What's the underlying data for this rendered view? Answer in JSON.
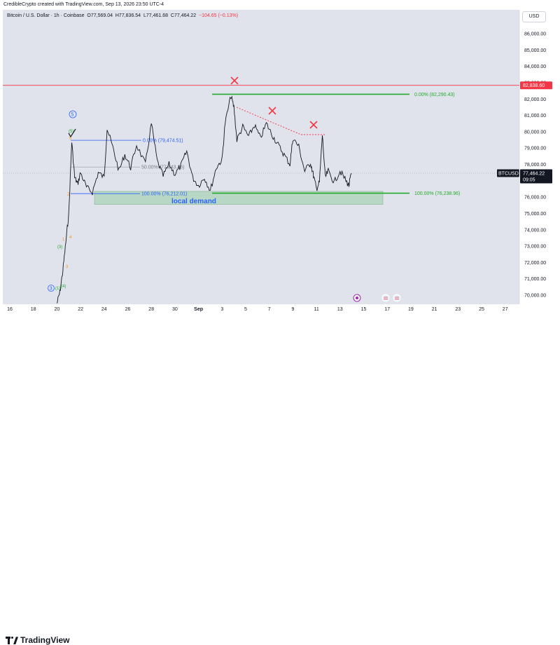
{
  "header": {
    "creator_text": "CredibleCrypto created with TradingView.com, Sep 13, 2026 23:50 UTC-4"
  },
  "legend": {
    "symbol": "Bitcoin / U.S. Dollar · 1h · Coinbase",
    "o": "O77,569.04",
    "h": "H77,836.54",
    "l": "L77,461.68",
    "c": "C77,464.22",
    "change": "−104.65 (−0.13%)"
  },
  "currency": "USD",
  "price_axis": {
    "ticks": [
      "86,000.00",
      "85,000.00",
      "84,000.00",
      "83,000.00",
      "82,000.00",
      "81,000.00",
      "80,000.00",
      "79,000.00",
      "78,000.00",
      "77,000.00",
      "76,000.00",
      "75,000.00",
      "74,000.00",
      "73,000.00",
      "72,000.00",
      "71,000.00",
      "70,000.00"
    ],
    "red_line_label": "82,838.60",
    "symbol_tag": "BTCUSD",
    "last_price": "77,464.22",
    "countdown": "09:05"
  },
  "time_axis": {
    "ticks": [
      "16",
      "18",
      "20",
      "22",
      "24",
      "26",
      "28",
      "30",
      "Sep",
      "3",
      "5",
      "7",
      "9",
      "11",
      "13",
      "15",
      "17",
      "19",
      "21",
      "23",
      "25",
      "27"
    ]
  },
  "annotations": {
    "fib_top_right": "0.00% (82,290.43)",
    "fib_bottom_right": "100.00% (76,238.96)",
    "fib_left_top": "0.00% (79,474.51)",
    "fib_left_mid": "50.00% (77,843.26)",
    "fib_left_bottom": "100.00% (76,212.01)",
    "local_demand": "local demand",
    "wave_5": "5",
    "wave_b": "(5)",
    "wave_3": "3",
    "wave_1": "(1)",
    "wave_4": "(4)",
    "wave_3b": "(3)",
    "orange_5": "5",
    "orange_4": "4",
    "orange_3": "3",
    "orange_2": "2",
    "orange_1": "1"
  },
  "chart_data": {
    "type": "line",
    "title": "",
    "y_unit": "USD",
    "ylim": [
      69500,
      86800
    ],
    "x": [
      "Aug 16",
      "Aug 18",
      "Aug 20",
      "Aug 22",
      "Aug 24",
      "Aug 26",
      "Aug 28",
      "Aug 30",
      "Sep 1",
      "Sep 3",
      "Sep 5",
      "Sep 7",
      "Sep 9",
      "Sep 11",
      "Sep 13"
    ],
    "red_horizontal": 82838.6,
    "green_top": 82290.43,
    "green_bottom": 76238.96,
    "demand_zone": [
      75550,
      76350
    ],
    "last": 77464.22,
    "points": [
      [
        "Aug 20 00:00",
        69500
      ],
      [
        "Aug 20 06:00",
        70200
      ],
      [
        "Aug 20 12:00",
        71500
      ],
      [
        "Aug 20 18:00",
        73200
      ],
      [
        "Aug 21 00:00",
        75000
      ],
      [
        "Aug 21 06:00",
        79400
      ],
      [
        "Aug 21 12:00",
        77200
      ],
      [
        "Aug 21 18:00",
        76800
      ],
      [
        "Aug 22 00:00",
        77500
      ],
      [
        "Aug 22 12:00",
        76600
      ],
      [
        "Aug 23 00:00",
        76300
      ],
      [
        "Aug 23 12:00",
        77500
      ],
      [
        "Aug 24 00:00",
        77200
      ],
      [
        "Aug 24 06:00",
        80200
      ],
      [
        "Aug 24 18:00",
        79000
      ],
      [
        "Aug 25 06:00",
        77600
      ],
      [
        "Aug 25 18:00",
        78600
      ],
      [
        "Aug 26 06:00",
        77800
      ],
      [
        "Aug 26 18:00",
        79200
      ],
      [
        "Aug 27 12:00",
        78000
      ],
      [
        "Aug 28 00:00",
        80500
      ],
      [
        "Aug 28 12:00",
        78200
      ],
      [
        "Aug 29 00:00",
        77300
      ],
      [
        "Aug 29 12:00",
        78000
      ],
      [
        "Aug 30 00:00",
        77400
      ],
      [
        "Aug 30 12:00",
        77900
      ],
      [
        "Aug 31 00:00",
        78800
      ],
      [
        "Aug 31 12:00",
        77200
      ],
      [
        "Sep 1 00:00",
        76700
      ],
      [
        "Sep 1 12:00",
        77200
      ],
      [
        "Sep 2 00:00",
        76400
      ],
      [
        "Sep 2 12:00",
        77800
      ],
      [
        "Sep 3 00:00",
        78300
      ],
      [
        "Sep 3 06:00",
        80500
      ],
      [
        "Sep 3 18:00",
        82200
      ],
      [
        "Sep 4 00:00",
        81500
      ],
      [
        "Sep 4 06:00",
        79500
      ],
      [
        "Sep 4 18:00",
        80300
      ],
      [
        "Sep 5 06:00",
        79700
      ],
      [
        "Sep 5 18:00",
        80400
      ],
      [
        "Sep 6 06:00",
        79600
      ],
      [
        "Sep 6 18:00",
        80500
      ],
      [
        "Sep 7 06:00",
        79800
      ],
      [
        "Sep 7 18:00",
        79200
      ],
      [
        "Sep 8 06:00",
        78600
      ],
      [
        "Sep 8 18:00",
        78000
      ],
      [
        "Sep 9 00:00",
        79600
      ],
      [
        "Sep 9 12:00",
        79100
      ],
      [
        "Sep 10 00:00",
        77600
      ],
      [
        "Sep 10 12:00",
        78100
      ],
      [
        "Sep 10 18:00",
        77300
      ],
      [
        "Sep 11 00:00",
        76500
      ],
      [
        "Sep 11 06:00",
        76900
      ],
      [
        "Sep 11 12:00",
        79800
      ],
      [
        "Sep 11 18:00",
        77200
      ],
      [
        "Sep 12 00:00",
        77600
      ],
      [
        "Sep 12 12:00",
        76900
      ],
      [
        "Sep 13 00:00",
        77600
      ],
      [
        "Sep 13 12:00",
        77000
      ],
      [
        "Sep 13 18:00",
        76700
      ],
      [
        "Sep 13 23:00",
        77464
      ]
    ]
  }
}
